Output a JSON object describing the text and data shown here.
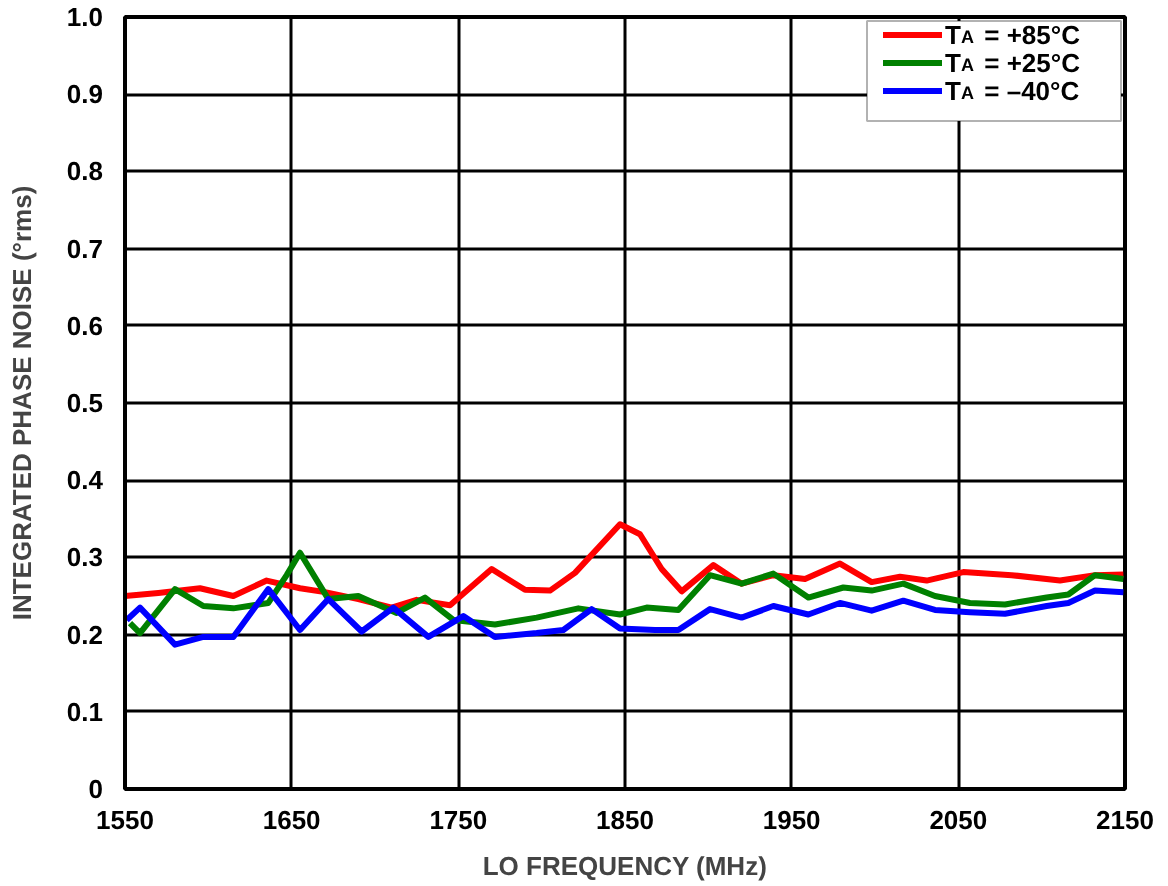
{
  "chart_data": {
    "type": "line",
    "xlabel": "LO FREQUENCY (MHz)",
    "ylabel": "INTEGRATED PHASE NOISE (°rms)",
    "xlim": [
      1550,
      2150
    ],
    "xticks": [
      1550,
      1650,
      1750,
      1850,
      1950,
      2050,
      2150
    ],
    "ylim": [
      0,
      1.0
    ],
    "yticks": [
      0,
      {
        "value": 0.1,
        "label": "0.1"
      },
      {
        "value": 0.2,
        "label": "0.2"
      },
      {
        "value": 0.3,
        "label": "0.3"
      },
      {
        "value": 0.4,
        "label": "0.4"
      },
      {
        "value": 0.5,
        "label": "0.5"
      },
      {
        "value": 0.6,
        "label": "0.6"
      },
      {
        "value": 0.7,
        "label": "0.7"
      },
      {
        "value": 0.8,
        "label": "0.8"
      },
      {
        "value": 0.9,
        "label": "0.9"
      },
      {
        "value": 1.0,
        "label": "1.0"
      }
    ],
    "grid": true,
    "legend": "top right",
    "line_style": "solid",
    "series": [
      {
        "name": "T$_{A}$ = +85°C",
        "color": "#ff0000",
        "x": [
          1550,
          1570,
          1595,
          1615,
          1635,
          1655,
          1670,
          1690,
          1710,
          1725,
          1745,
          1770,
          1790,
          1805,
          1820,
          1847,
          1859,
          1872,
          1884,
          1903,
          1920,
          1939,
          1958,
          1979,
          1998,
          2015,
          2031,
          2053,
          2082,
          2111,
          2132,
          2149
        ],
        "values": [
          0.25,
          0.254,
          0.26,
          0.25,
          0.27,
          0.26,
          0.255,
          0.246,
          0.235,
          0.245,
          0.238,
          0.285,
          0.258,
          0.257,
          0.28,
          0.343,
          0.33,
          0.285,
          0.256,
          0.29,
          0.266,
          0.277,
          0.272,
          0.292,
          0.268,
          0.275,
          0.27,
          0.281,
          0.277,
          0.27,
          0.277,
          0.278
        ]
      },
      {
        "name": "T$_{A}$ = +25°C",
        "color": "#008000",
        "x": [
          1553,
          1559,
          1580,
          1597,
          1615,
          1636,
          1647,
          1655,
          1672,
          1690,
          1713,
          1730,
          1747,
          1772,
          1797,
          1822,
          1847,
          1863,
          1882,
          1901,
          1920,
          1939,
          1960,
          1981,
          1998,
          2017,
          2036,
          2057,
          2078,
          2103,
          2116,
          2132,
          2149
        ],
        "values": [
          0.215,
          0.202,
          0.259,
          0.237,
          0.234,
          0.241,
          0.277,
          0.306,
          0.246,
          0.25,
          0.228,
          0.248,
          0.219,
          0.213,
          0.222,
          0.234,
          0.226,
          0.235,
          0.232,
          0.277,
          0.266,
          0.279,
          0.248,
          0.261,
          0.257,
          0.266,
          0.25,
          0.241,
          0.239,
          0.248,
          0.252,
          0.277,
          0.272
        ]
      },
      {
        "name": "T$_{A}$ = –40°C",
        "color": "#0000ff",
        "x": [
          1551,
          1559,
          1580,
          1597,
          1615,
          1636,
          1655,
          1672,
          1692,
          1711,
          1732,
          1753,
          1772,
          1797,
          1813,
          1830,
          1847,
          1868,
          1882,
          1901,
          1920,
          1939,
          1960,
          1979,
          1998,
          2017,
          2036,
          2057,
          2078,
          2103,
          2116,
          2132,
          2149
        ],
        "values": [
          0.219,
          0.235,
          0.187,
          0.197,
          0.197,
          0.259,
          0.206,
          0.246,
          0.204,
          0.235,
          0.197,
          0.224,
          0.197,
          0.202,
          0.206,
          0.233,
          0.208,
          0.206,
          0.206,
          0.233,
          0.222,
          0.237,
          0.226,
          0.241,
          0.231,
          0.244,
          0.232,
          0.229,
          0.227,
          0.237,
          0.241,
          0.257,
          0.255
        ]
      }
    ]
  }
}
